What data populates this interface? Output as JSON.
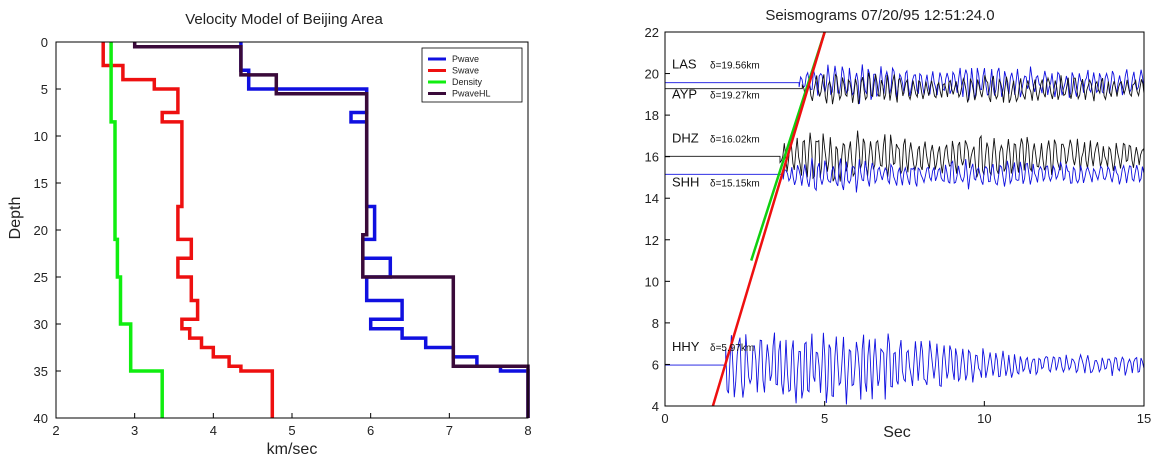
{
  "chart_data": [
    {
      "type": "line",
      "title": "Velocity Model of Beijing Area",
      "xlabel": "km/sec",
      "ylabel": "Depth",
      "xlim": [
        2,
        8
      ],
      "ylim": [
        40,
        0
      ],
      "y_inverted": true,
      "xticks": [
        "2",
        "3",
        "4",
        "5",
        "6",
        "7",
        "8"
      ],
      "yticks": [
        "0",
        "5",
        "10",
        "15",
        "20",
        "25",
        "30",
        "35",
        "40"
      ],
      "legend_position": "top-right",
      "series": [
        {
          "name": "Pwave",
          "color": "#1010e0",
          "step": true,
          "x": [
            4.35,
            4.35,
            4.45,
            4.45,
            5.95,
            5.95,
            5.75,
            5.75,
            5.95,
            5.95,
            6.05,
            6.05,
            5.9,
            5.9,
            6.25,
            6.25,
            5.95,
            5.95,
            6.4,
            6.4,
            6.0,
            6.0,
            6.4,
            6.4,
            6.7,
            6.7,
            7.05,
            7.05,
            7.35,
            7.35,
            7.65,
            7.65,
            8.0,
            8.0
          ],
          "y": [
            0,
            3,
            3,
            5,
            5,
            7.5,
            7.5,
            8.5,
            8.5,
            17.5,
            17.5,
            21,
            21,
            23,
            23,
            25,
            25,
            27.5,
            27.5,
            29.5,
            29.5,
            30.5,
            30.5,
            31.5,
            31.5,
            32.5,
            32.5,
            33.5,
            33.5,
            34.5,
            34.5,
            35,
            35,
            40
          ]
        },
        {
          "name": "Swave",
          "color": "#ee1010",
          "step": true,
          "x": [
            2.6,
            2.6,
            2.85,
            2.85,
            3.25,
            3.25,
            3.55,
            3.55,
            3.35,
            3.35,
            3.6,
            3.6,
            3.55,
            3.55,
            3.72,
            3.72,
            3.55,
            3.55,
            3.72,
            3.72,
            3.8,
            3.8,
            3.6,
            3.6,
            3.7,
            3.7,
            3.85,
            3.85,
            4.0,
            4.0,
            4.2,
            4.2,
            4.35,
            4.35,
            4.75,
            4.75
          ],
          "y": [
            0,
            2.5,
            2.5,
            4,
            4,
            5,
            5,
            7.5,
            7.5,
            8.5,
            8.5,
            17.5,
            17.5,
            21,
            21,
            23,
            23,
            25,
            25,
            27.5,
            27.5,
            29.5,
            29.5,
            30.5,
            30.5,
            31.5,
            31.5,
            32.5,
            32.5,
            33.5,
            33.5,
            34.5,
            34.5,
            35,
            35,
            40
          ]
        },
        {
          "name": "Density",
          "color": "#10ee10",
          "step": true,
          "x": [
            2.7,
            2.7,
            2.75,
            2.75,
            2.78,
            2.78,
            2.82,
            2.82,
            2.95,
            2.95,
            3.35,
            3.35
          ],
          "y": [
            0,
            8.5,
            8.5,
            21,
            21,
            25,
            25,
            30,
            30,
            35,
            35,
            40
          ]
        },
        {
          "name": "PwaveHL",
          "color": "#3a0a3a",
          "step": true,
          "x": [
            3.0,
            3.0,
            4.35,
            4.35,
            4.8,
            4.8,
            5.95,
            5.95,
            5.9,
            5.9,
            7.05,
            7.05,
            8.0,
            8.0
          ],
          "y": [
            0,
            0.5,
            0.5,
            3.5,
            3.5,
            5.5,
            5.5,
            20.5,
            20.5,
            25,
            25,
            34.5,
            34.5,
            40
          ]
        }
      ]
    },
    {
      "type": "line",
      "title": "Seismograms 07/20/95 12:51:24.0",
      "xlabel": "Sec",
      "ylabel": "",
      "xlim": [
        0,
        15
      ],
      "ylim": [
        4,
        22
      ],
      "xticks": [
        "0",
        "5",
        "10",
        "15"
      ],
      "yticks": [
        "4",
        "6",
        "8",
        "10",
        "12",
        "14",
        "16",
        "18",
        "20",
        "22"
      ],
      "traces": [
        {
          "station": "LAS",
          "distance_label": "δ=19.56km",
          "base": 19.56,
          "color": "#1010e0",
          "onset": 4.2,
          "amp": 0.9
        },
        {
          "station": "AYP",
          "distance_label": "δ=19.27km",
          "base": 19.27,
          "color": "#111111",
          "onset": 4.3,
          "amp": 0.8
        },
        {
          "station": "DHZ",
          "distance_label": "δ=16.02km",
          "base": 16.02,
          "color": "#111111",
          "onset": 3.6,
          "amp": 1.2
        },
        {
          "station": "SHH",
          "distance_label": "δ=15.15km",
          "base": 15.15,
          "color": "#1010e0",
          "onset": 3.7,
          "amp": 0.8
        },
        {
          "station": "HHY",
          "distance_label": "δ=5.97km",
          "base": 5.97,
          "color": "#1010e0",
          "onset": 1.9,
          "amp": 1.9
        }
      ],
      "moveout_lines": [
        {
          "color": "#10d010",
          "x": [
            2.7,
            5.0
          ],
          "y": [
            11.0,
            22.0
          ]
        },
        {
          "color": "#ee1010",
          "x": [
            1.5,
            5.0
          ],
          "y": [
            4.0,
            22.0
          ]
        }
      ]
    }
  ]
}
